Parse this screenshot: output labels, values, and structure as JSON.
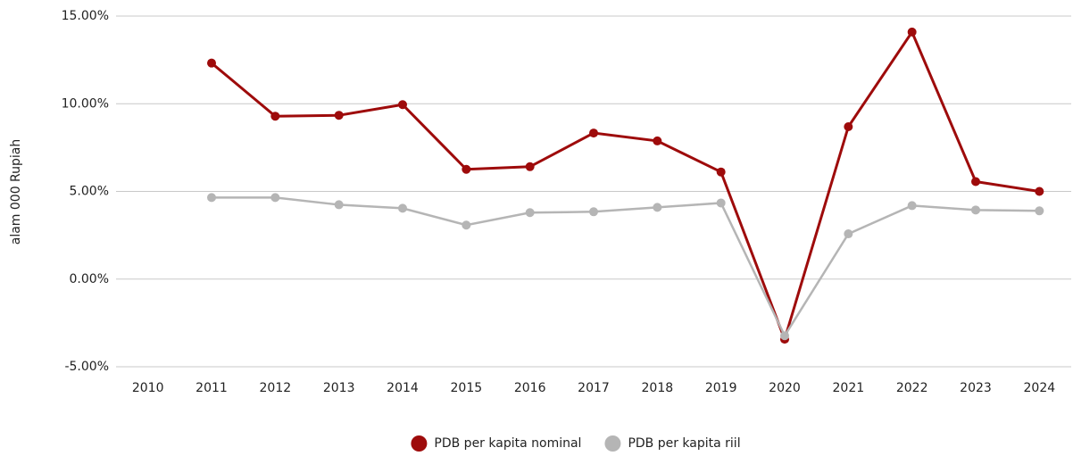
{
  "chart_data": {
    "type": "line",
    "y_label": "alam  000 Rupiah",
    "categories": [
      "2010",
      "2011",
      "2012",
      "2013",
      "2014",
      "2015",
      "2016",
      "2017",
      "2018",
      "2019",
      "2020",
      "2021",
      "2022",
      "2023",
      "2024"
    ],
    "series": [
      {
        "name": "PDB per kapita nominal",
        "color": "#9e0b0b",
        "values": [
          null,
          12.32,
          9.29,
          9.34,
          9.95,
          6.26,
          6.41,
          8.33,
          7.88,
          6.11,
          -3.43,
          8.69,
          14.09,
          5.56,
          5.0
        ]
      },
      {
        "name": "PDB per kapita riil",
        "color": "#b5b5b5",
        "values": [
          null,
          4.65,
          4.65,
          4.24,
          4.04,
          3.08,
          3.79,
          3.84,
          4.09,
          4.34,
          -3.23,
          2.58,
          4.19,
          3.94,
          3.89
        ]
      }
    ],
    "ylim": [
      -5,
      15
    ],
    "yticks": [
      {
        "value": -5,
        "label": "-5.00%"
      },
      {
        "value": 0,
        "label": "0.00%"
      },
      {
        "value": 5,
        "label": "5.00%"
      },
      {
        "value": 10,
        "label": "10.00%"
      },
      {
        "value": 15,
        "label": "15.00%"
      }
    ],
    "grid": true,
    "legend": "bottom"
  }
}
